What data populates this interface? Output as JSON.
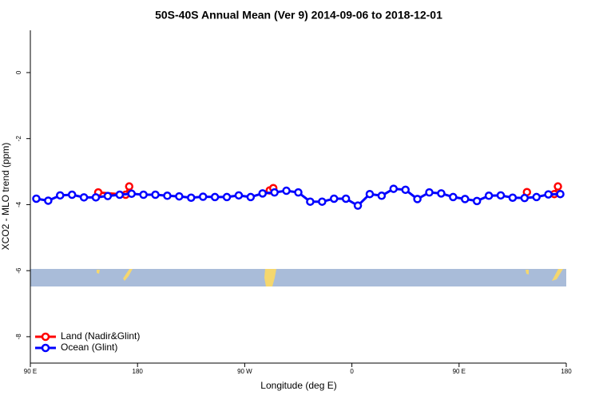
{
  "chart_data": {
    "type": "line",
    "title": "50S-40S Annual Mean (Ver 9)   2014-09-06 to 2018-12-01",
    "xlabel": "Longitude (deg E)",
    "ylabel": "XCO2 - MLO trend (ppm)",
    "xlim": [
      90,
      540
    ],
    "xticks": [
      {
        "value": 90,
        "label": "90 E"
      },
      180,
      {
        "value": 270,
        "label": "90 W"
      },
      {
        "value": 360,
        "label": "0"
      },
      {
        "value": 450,
        "label": "90 E"
      },
      {
        "value": 540,
        "label": "180"
      }
    ],
    "ylim": [
      -8.8,
      1.28
    ],
    "yticks": [
      0,
      -2,
      -4,
      -6,
      -8
    ],
    "legend": "bottom-left",
    "series": [
      {
        "name": "Land (Nadir&Glint)",
        "color": "#ff0000",
        "x": [
          147,
          170,
          173,
          180,
          291,
          294,
          300,
          507,
          520,
          530,
          533
        ],
        "values": [
          -3.63,
          -3.7,
          -3.45,
          null,
          -3.57,
          -3.5,
          null,
          -3.62,
          null,
          -3.68,
          -3.45
        ]
      },
      {
        "name": "Ocean (Glint)",
        "color": "#0000ff",
        "x": [
          95,
          105,
          115,
          125,
          135,
          145,
          155,
          165,
          175,
          185,
          195,
          205,
          215,
          225,
          235,
          245,
          255,
          265,
          275,
          285,
          295,
          305,
          315,
          325,
          335,
          345,
          355,
          365,
          375,
          385,
          395,
          405,
          415,
          425,
          435,
          445,
          455,
          465,
          475,
          485,
          495,
          505,
          515,
          525,
          535
        ],
        "values": [
          -3.82,
          -3.88,
          -3.72,
          -3.7,
          -3.78,
          -3.78,
          -3.74,
          -3.7,
          -3.67,
          -3.7,
          -3.7,
          -3.73,
          -3.75,
          -3.79,
          -3.76,
          -3.77,
          -3.77,
          -3.72,
          -3.77,
          -3.66,
          -3.63,
          -3.58,
          -3.63,
          -3.91,
          -3.91,
          -3.82,
          -3.82,
          -4.03,
          -3.68,
          -3.73,
          -3.52,
          -3.55,
          -3.83,
          -3.63,
          -3.66,
          -3.77,
          -3.83,
          -3.89,
          -3.73,
          -3.72,
          -3.79,
          -3.8,
          -3.77,
          -3.69,
          -3.68
        ]
      }
    ]
  }
}
